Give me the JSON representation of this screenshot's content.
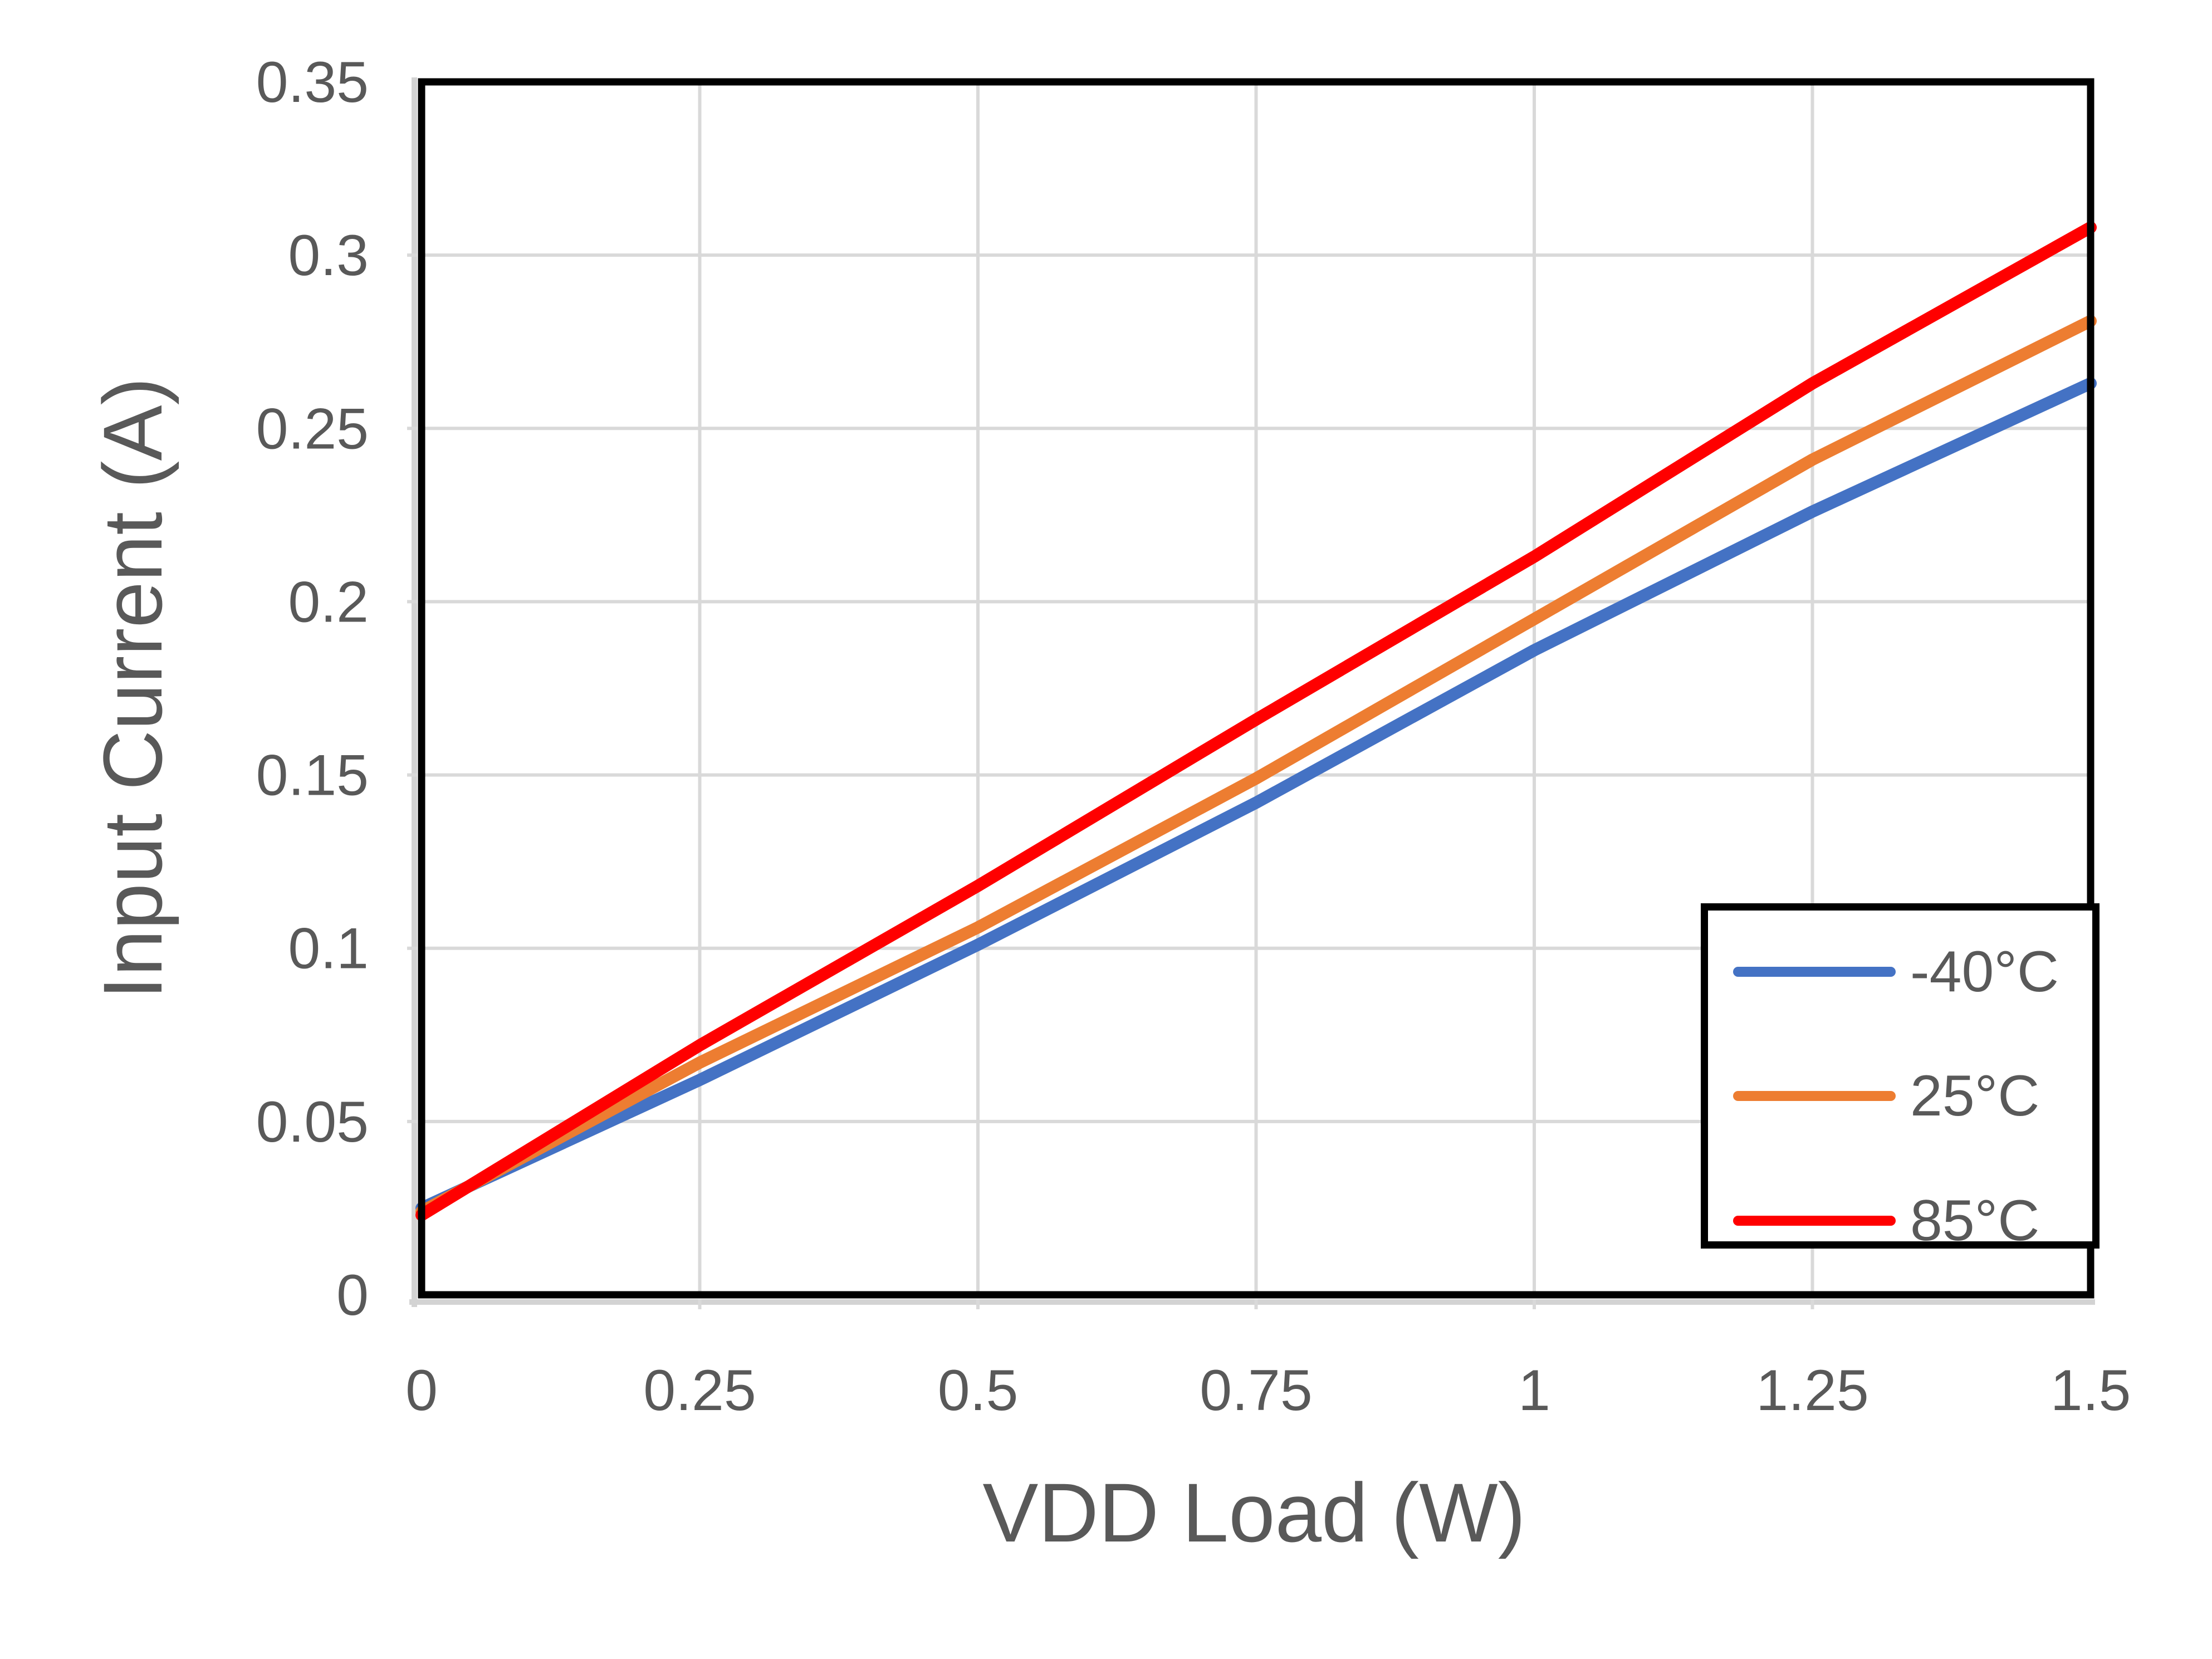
{
  "colors": {
    "background": "#FFFFFF",
    "text": "#595959",
    "gridline": "#D9D9D9",
    "axis_shadow": "#D3D3D3",
    "plot_border": "#000000",
    "legend_border": "#000000"
  },
  "chart_data": {
    "type": "line",
    "xlabel": "VDD Load (W)",
    "ylabel": "Input Current (A)",
    "xlim": [
      0,
      1.5
    ],
    "ylim": [
      0,
      0.35
    ],
    "x_ticks": [
      0,
      0.25,
      0.5,
      0.75,
      1,
      1.25,
      1.5
    ],
    "x_tick_labels": [
      "0",
      "0.25",
      "0.5",
      "0.75",
      "1",
      "1.25",
      "1.5"
    ],
    "y_ticks": [
      0,
      0.05,
      0.1,
      0.15,
      0.2,
      0.25,
      0.3,
      0.35
    ],
    "y_tick_labels": [
      "0",
      "0.05",
      "0.1",
      "0.15",
      "0.2",
      "0.25",
      "0.3",
      "0.35"
    ],
    "grid": true,
    "legend_position": "bottom-right",
    "x": [
      0,
      0.25,
      0.5,
      0.75,
      1,
      1.25,
      1.5
    ],
    "series": [
      {
        "name": "-40°C",
        "color": "#4472C4",
        "values": [
          0.025,
          0.062,
          0.101,
          0.142,
          0.186,
          0.226,
          0.263
        ]
      },
      {
        "name": "25°C",
        "color": "#ED7D31",
        "values": [
          0.024,
          0.067,
          0.106,
          0.149,
          0.195,
          0.241,
          0.281
        ]
      },
      {
        "name": "85°C",
        "color": "#FF0000",
        "values": [
          0.023,
          0.072,
          0.118,
          0.166,
          0.213,
          0.263,
          0.308
        ]
      }
    ]
  }
}
